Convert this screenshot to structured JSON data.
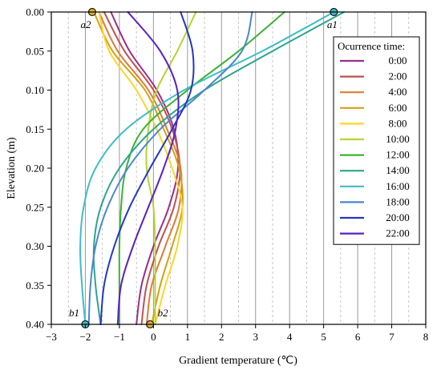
{
  "chart_data": {
    "type": "line",
    "xlabel": "Gradient temperature (℃)",
    "ylabel": "Elevation (m)",
    "xlim": [
      -3,
      8
    ],
    "ylim": [
      0.4,
      0.0
    ],
    "y_inverted": true,
    "x_ticks": [
      -3,
      -2,
      -1,
      0,
      1,
      2,
      3,
      4,
      5,
      6,
      7,
      8
    ],
    "x_tick_labels": [
      "−3",
      "−2",
      "−1",
      "0",
      "1",
      "2",
      "3",
      "4",
      "5",
      "6",
      "7",
      "8"
    ],
    "y_ticks": [
      0,
      0.05,
      0.1,
      0.15,
      0.2,
      0.25,
      0.3,
      0.35,
      0.4
    ],
    "y_tick_labels": [
      "0.00",
      "0.05",
      "0.10",
      "0.15",
      "0.20",
      "0.25",
      "0.30",
      "0.35",
      "0.40"
    ],
    "grid": {
      "major_x": "solid",
      "minor_x": "dashed",
      "y": false
    },
    "legend": {
      "title": "Ocurrence time:",
      "placement": "right"
    },
    "series": [
      {
        "name": "0:00",
        "color": "#9b2d8f",
        "points": [
          [
            -1.25,
            0
          ],
          [
            -0.7,
            0.05
          ],
          [
            0.1,
            0.1
          ],
          [
            0.6,
            0.15
          ],
          [
            0.72,
            0.2
          ],
          [
            0.45,
            0.25
          ],
          [
            0.0,
            0.3
          ],
          [
            -0.35,
            0.35
          ],
          [
            -0.5,
            0.4
          ]
        ]
      },
      {
        "name": "2:00",
        "color": "#c0504d",
        "points": [
          [
            -1.45,
            0
          ],
          [
            -0.85,
            0.05
          ],
          [
            0.0,
            0.1
          ],
          [
            0.55,
            0.15
          ],
          [
            0.78,
            0.2
          ],
          [
            0.6,
            0.25
          ],
          [
            0.15,
            0.3
          ],
          [
            -0.2,
            0.35
          ],
          [
            -0.35,
            0.4
          ]
        ]
      },
      {
        "name": "4:00",
        "color": "#e07b39",
        "points": [
          [
            -1.6,
            0
          ],
          [
            -1.05,
            0.05
          ],
          [
            -0.15,
            0.1
          ],
          [
            0.4,
            0.15
          ],
          [
            0.8,
            0.2
          ],
          [
            0.75,
            0.25
          ],
          [
            0.35,
            0.3
          ],
          [
            -0.05,
            0.35
          ],
          [
            -0.2,
            0.4
          ]
        ]
      },
      {
        "name": "6:00",
        "color": "#d4a017",
        "points": [
          [
            -1.75,
            0
          ],
          [
            -1.2,
            0.05
          ],
          [
            -0.25,
            0.1
          ],
          [
            0.3,
            0.15
          ],
          [
            0.75,
            0.2
          ],
          [
            0.85,
            0.25
          ],
          [
            0.55,
            0.3
          ],
          [
            0.2,
            0.35
          ],
          [
            -0.05,
            0.4
          ]
        ]
      },
      {
        "name": "8:00",
        "color": "#ffd42a",
        "points": [
          [
            -1.6,
            0
          ],
          [
            -1.3,
            0.05
          ],
          [
            -0.5,
            0.1
          ],
          [
            0.1,
            0.15
          ],
          [
            0.55,
            0.2
          ],
          [
            0.85,
            0.25
          ],
          [
            0.7,
            0.3
          ],
          [
            0.35,
            0.35
          ],
          [
            0.05,
            0.4
          ]
        ]
      },
      {
        "name": "10:00",
        "color": "#b5d334",
        "points": [
          [
            1.25,
            0
          ],
          [
            0.7,
            0.05
          ],
          [
            0.1,
            0.1
          ],
          [
            -0.15,
            0.15
          ],
          [
            -0.2,
            0.2
          ],
          [
            0.0,
            0.25
          ],
          [
            0.05,
            0.3
          ],
          [
            0.05,
            0.35
          ],
          [
            0.05,
            0.4
          ]
        ]
      },
      {
        "name": "12:00",
        "color": "#3ab334",
        "points": [
          [
            3.85,
            0
          ],
          [
            2.5,
            0.05
          ],
          [
            1.0,
            0.1
          ],
          [
            -0.3,
            0.15
          ],
          [
            -0.8,
            0.2
          ],
          [
            -0.95,
            0.25
          ],
          [
            -1.0,
            0.3
          ],
          [
            -1.0,
            0.35
          ],
          [
            -1.0,
            0.4
          ]
        ]
      },
      {
        "name": "14:00",
        "color": "#2aa58c",
        "points": [
          [
            5.6,
            0
          ],
          [
            3.5,
            0.05
          ],
          [
            1.5,
            0.1
          ],
          [
            0.0,
            0.15
          ],
          [
            -1.0,
            0.2
          ],
          [
            -1.55,
            0.25
          ],
          [
            -1.75,
            0.3
          ],
          [
            -1.7,
            0.35
          ],
          [
            -1.55,
            0.4
          ]
        ]
      },
      {
        "name": "16:00",
        "color": "#3fbcc9",
        "points": [
          [
            5.3,
            0
          ],
          [
            3.2,
            0.05
          ],
          [
            0.9,
            0.1
          ],
          [
            -0.8,
            0.15
          ],
          [
            -1.7,
            0.2
          ],
          [
            -2.05,
            0.25
          ],
          [
            -2.15,
            0.3
          ],
          [
            -2.1,
            0.35
          ],
          [
            -2.0,
            0.4
          ]
        ]
      },
      {
        "name": "18:00",
        "color": "#4a86d4",
        "points": [
          [
            2.9,
            0
          ],
          [
            2.6,
            0.05
          ],
          [
            1.5,
            0.1
          ],
          [
            0.2,
            0.15
          ],
          [
            -0.75,
            0.2
          ],
          [
            -1.35,
            0.25
          ],
          [
            -1.7,
            0.3
          ],
          [
            -1.85,
            0.35
          ],
          [
            -1.9,
            0.4
          ]
        ]
      },
      {
        "name": "20:00",
        "color": "#2436c8",
        "points": [
          [
            0.8,
            0
          ],
          [
            1.15,
            0.05
          ],
          [
            1.1,
            0.1
          ],
          [
            0.55,
            0.15
          ],
          [
            -0.1,
            0.2
          ],
          [
            -0.7,
            0.25
          ],
          [
            -1.15,
            0.3
          ],
          [
            -1.45,
            0.35
          ],
          [
            -1.55,
            0.4
          ]
        ]
      },
      {
        "name": "22:00",
        "color": "#5a1fc2",
        "points": [
          [
            -0.75,
            0
          ],
          [
            0.2,
            0.05
          ],
          [
            0.7,
            0.1
          ],
          [
            0.65,
            0.15
          ],
          [
            0.3,
            0.2
          ],
          [
            -0.15,
            0.25
          ],
          [
            -0.6,
            0.3
          ],
          [
            -0.95,
            0.35
          ],
          [
            -1.05,
            0.4
          ]
        ]
      }
    ],
    "annotations": [
      {
        "label": "a1",
        "x": 5.3,
        "y": 0.0,
        "fill": "#3fbcc9",
        "label_anchor": "below"
      },
      {
        "label": "a2",
        "x": -1.8,
        "y": 0.0,
        "fill": "#e0b030",
        "label_anchor": "below-left"
      },
      {
        "label": "b1",
        "x": -2.0,
        "y": 0.4,
        "fill": "#3fbcc9",
        "label_anchor": "above-left"
      },
      {
        "label": "b2",
        "x": -0.1,
        "y": 0.4,
        "fill": "#e0b030",
        "label_anchor": "above-right"
      }
    ]
  }
}
